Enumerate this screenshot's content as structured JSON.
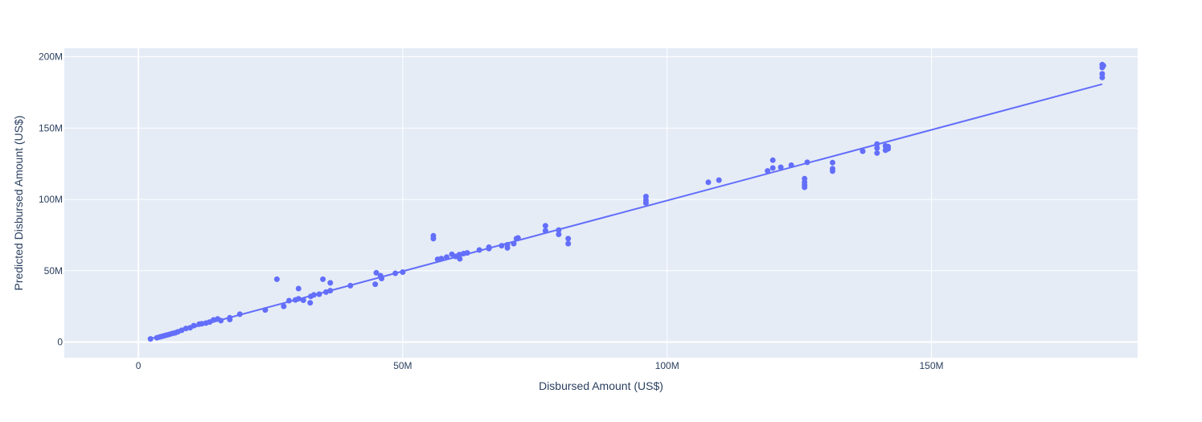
{
  "chart_data": {
    "type": "scatter",
    "xlabel": "Disbursed Amount (US$)",
    "ylabel": "Predicted Disbursed Amount (US$)",
    "xlim": [
      -14000000,
      189000000
    ],
    "ylim": [
      -11000000,
      206000000
    ],
    "x_ticks": [
      0,
      50000000,
      100000000,
      150000000
    ],
    "x_tick_labels": [
      "0",
      "50M",
      "100M",
      "150M"
    ],
    "y_ticks": [
      0,
      50000000,
      100000000,
      150000000,
      200000000
    ],
    "y_tick_labels": [
      "0",
      "50M",
      "100M",
      "150M",
      "200M"
    ],
    "grid": true,
    "colors": {
      "series": "#636efa",
      "plot_bg": "#e5ecf6",
      "grid": "#ffffff",
      "text": "#2a3f5f"
    },
    "series": [
      {
        "mode": "markers",
        "x": [
          2300000,
          3500000,
          4000000,
          4500000,
          5000000,
          5500000,
          6000000,
          6500000,
          7000000,
          7500000,
          8200000,
          9000000,
          9800000,
          10500000,
          11500000,
          12000000,
          12800000,
          13500000,
          14200000,
          15000000,
          15600000,
          17300000,
          17300000,
          19200000,
          24000000,
          26200000,
          27500000,
          28500000,
          29700000,
          30300000,
          30300000,
          31200000,
          32500000,
          32600000,
          33200000,
          34200000,
          34900000,
          35500000,
          36300000,
          36300000,
          40100000,
          44800000,
          45000000,
          45800000,
          46000000,
          48600000,
          50000000,
          55800000,
          55800000,
          56600000,
          57300000,
          58300000,
          59300000,
          60000000,
          60700000,
          60800000,
          61500000,
          62200000,
          64500000,
          66300000,
          66300000,
          68700000,
          69800000,
          69800000,
          71000000,
          71500000,
          71800000,
          77000000,
          77000000,
          79500000,
          79500000,
          81300000,
          81300000,
          96000000,
          96000000,
          96000000,
          107800000,
          109800000,
          119000000,
          120000000,
          120000000,
          121500000,
          123500000,
          126000000,
          126000000,
          126000000,
          126000000,
          126500000,
          131300000,
          131300000,
          131300000,
          137000000,
          139700000,
          139700000,
          139700000,
          141300000,
          141300000,
          141800000,
          141800000,
          182300000,
          182300000,
          182300000,
          182300000,
          182500000
        ],
        "y": [
          2200000,
          3000000,
          3500000,
          4000000,
          4500000,
          5000000,
          5500000,
          6000000,
          6500000,
          7200000,
          8200000,
          9500000,
          10000000,
          11500000,
          12500000,
          12800000,
          13300000,
          14000000,
          15500000,
          16200000,
          15000000,
          17000000,
          15800000,
          19500000,
          22500000,
          44000000,
          25000000,
          29000000,
          29500000,
          30300000,
          37500000,
          29300000,
          27500000,
          32000000,
          33000000,
          33500000,
          44000000,
          35000000,
          36000000,
          41500000,
          39500000,
          40500000,
          48500000,
          46500000,
          44500000,
          48200000,
          49000000,
          74500000,
          72500000,
          58000000,
          58500000,
          59500000,
          61500000,
          60000000,
          61300000,
          58300000,
          62000000,
          62500000,
          64500000,
          65500000,
          66500000,
          67500000,
          66000000,
          68200000,
          69000000,
          72500000,
          73000000,
          81500000,
          78000000,
          78500000,
          75500000,
          72500000,
          69000000,
          102000000,
          99500000,
          97500000,
          112000000,
          113500000,
          120000000,
          127500000,
          122000000,
          122500000,
          124000000,
          114500000,
          112000000,
          110000000,
          108500000,
          126000000,
          125800000,
          121500000,
          119800000,
          133800000,
          138800000,
          136000000,
          132500000,
          137500000,
          134500000,
          137000000,
          135500000,
          194500000,
          192500000,
          188000000,
          185500000,
          193800000
        ]
      },
      {
        "mode": "line",
        "x": [
          2300000,
          182300000
        ],
        "y": [
          2300000,
          180800000
        ]
      }
    ]
  }
}
